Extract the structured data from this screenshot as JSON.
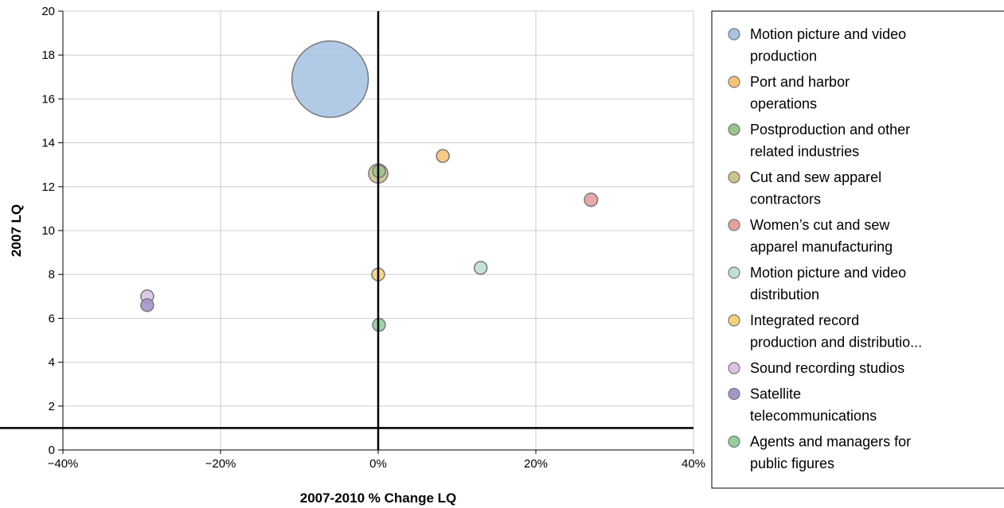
{
  "chart_data": {
    "type": "scatter",
    "subtype": "bubble",
    "xlabel": "2007-2010 % Change LQ",
    "ylabel": "2007 LQ",
    "xlim": [
      -40,
      40
    ],
    "ylim": [
      0,
      20
    ],
    "x_ticks": [
      -40,
      -20,
      0,
      20,
      40
    ],
    "x_tick_labels": [
      "−40%",
      "−20%",
      "0%",
      "20%",
      "40%"
    ],
    "y_ticks": [
      0,
      2,
      4,
      6,
      8,
      10,
      12,
      14,
      16,
      18,
      20
    ],
    "y_tick_labels": [
      "0",
      "2",
      "4",
      "6",
      "8",
      "10",
      "12",
      "14",
      "16",
      "18",
      "20"
    ],
    "grid": true,
    "reference_lines": {
      "x": 0,
      "y": 1
    },
    "legend_position": "right",
    "series": [
      {
        "name": "Motion picture and video production",
        "legend_lines": [
          "Motion picture and video",
          "production"
        ],
        "color": "#a9c4e3",
        "x": -6.1,
        "y": 16.9,
        "size": 100
      },
      {
        "name": "Port and harbor operations",
        "legend_lines": [
          "Port and harbor",
          "operations"
        ],
        "color": "#f7c473",
        "x": 8.2,
        "y": 13.4,
        "size": 2.0
      },
      {
        "name": "Postproduction and other related industries",
        "legend_lines": [
          "Postproduction and other",
          "related industries"
        ],
        "color": "#9bc48a",
        "x": 0.1,
        "y": 12.7,
        "size": 1.6
      },
      {
        "name": "Cut and sew apparel contractors",
        "legend_lines": [
          "Cut and sew apparel",
          "contractors"
        ],
        "color": "#cfc38c",
        "x": 0.0,
        "y": 12.6,
        "size": 6.3
      },
      {
        "name": "Women’s cut and sew apparel manufacturing",
        "legend_lines": [
          "Women’s cut and sew",
          "apparel manufacturing"
        ],
        "color": "#e6a19e",
        "x": 27.0,
        "y": 11.4,
        "size": 3.0
      },
      {
        "name": "Motion picture and video distribution",
        "legend_lines": [
          "Motion picture and video",
          "distribution"
        ],
        "color": "#bfe0d8",
        "x": 13.0,
        "y": 8.3,
        "size": 1.6
      },
      {
        "name": "Integrated record production and distributio...",
        "legend_lines": [
          "Integrated record",
          "production and distributio..."
        ],
        "color": "#f5d27a",
        "x": 0.0,
        "y": 8.0,
        "size": 1.1
      },
      {
        "name": "Sound recording studios",
        "legend_lines": [
          "Sound recording studios"
        ],
        "color": "#dcc3e6",
        "x": -29.3,
        "y": 7.0,
        "size": 1.1
      },
      {
        "name": "Satellite telecommunications",
        "legend_lines": [
          "Satellite",
          "telecommunications"
        ],
        "color": "#a595cc",
        "x": -29.3,
        "y": 6.6,
        "size": 1.1
      },
      {
        "name": "Agents and managers for public figures",
        "legend_lines": [
          "Agents and managers for",
          "public figures"
        ],
        "color": "#92cf9f",
        "x": 0.1,
        "y": 5.7,
        "size": 2.6
      }
    ]
  }
}
